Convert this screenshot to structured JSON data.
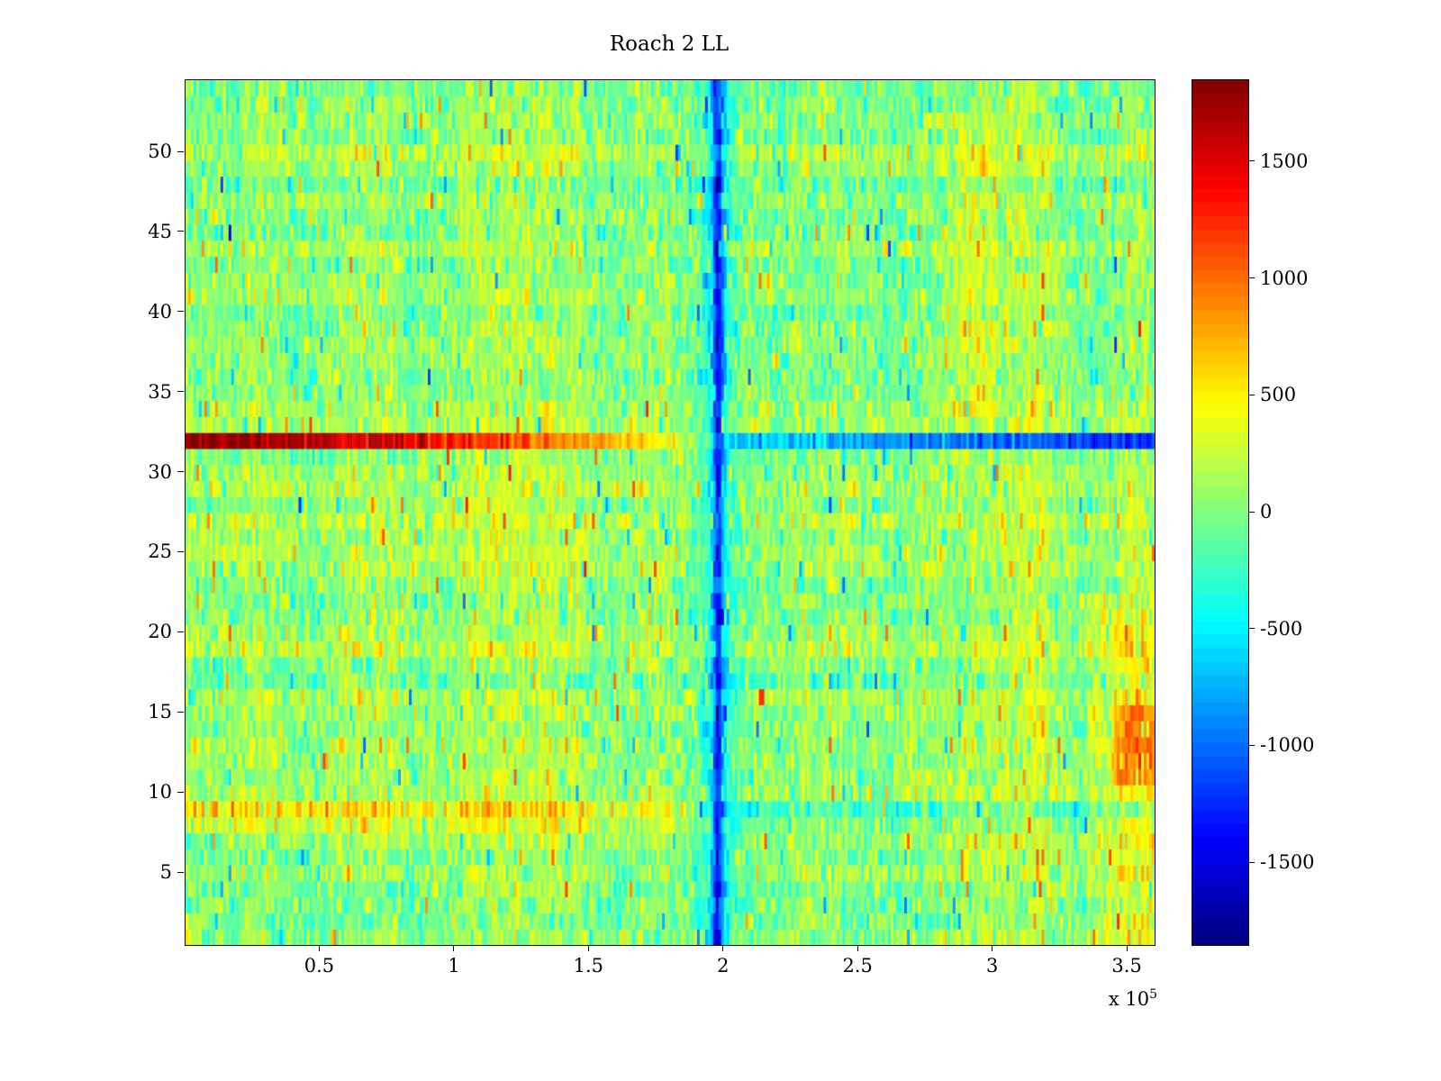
{
  "title": "Roach 2 LL",
  "x_axis": {
    "min": 0,
    "max": 360000,
    "tick_values": [
      50000,
      100000,
      150000,
      200000,
      250000,
      300000,
      350000
    ],
    "tick_labels": [
      "0.5",
      "1",
      "1.5",
      "2",
      "2.5",
      "3",
      "3.5"
    ],
    "scale_label_base": "x 10",
    "scale_label_exp": "5"
  },
  "y_axis": {
    "min": 0.5,
    "max": 54.5,
    "tick_values": [
      5,
      10,
      15,
      20,
      25,
      30,
      35,
      40,
      45,
      50
    ],
    "tick_labels": [
      "5",
      "10",
      "15",
      "20",
      "25",
      "30",
      "35",
      "40",
      "45",
      "50"
    ]
  },
  "colorbar": {
    "min": -1850,
    "max": 1850,
    "levels": 64,
    "colormap": "jet",
    "tick_values": [
      1500,
      1000,
      500,
      0,
      -500,
      -1000,
      -1500
    ],
    "tick_labels": [
      "1500",
      "1000",
      "500",
      "0",
      "-500",
      "-1000",
      "-1500"
    ]
  },
  "chart_data": {
    "type": "heatmap",
    "title": "Roach 2 LL",
    "xlabel": "",
    "ylabel": "",
    "x_range": [
      0,
      360000
    ],
    "y_range": [
      1,
      54
    ],
    "value_range": [
      -1850,
      1850
    ],
    "grid": {
      "cols": 360,
      "rows": 54
    },
    "noise": {
      "seed": 1337,
      "mean": 80,
      "std": 205,
      "row_offset_std": 70,
      "col_walk": 110,
      "spike_prob": 0.028,
      "spike_min": 350,
      "spike_max": 900
    },
    "features": [
      {
        "type": "row_set",
        "row": 32,
        "noise": 170,
        "stops": [
          [
            0,
            1800
          ],
          [
            0.12,
            1680
          ],
          [
            0.3,
            1280
          ],
          [
            0.42,
            820
          ],
          [
            0.5,
            480
          ],
          [
            0.545,
            80
          ],
          [
            0.57,
            -550
          ],
          [
            0.7,
            -820
          ],
          [
            0.85,
            -1000
          ],
          [
            1,
            -1250
          ]
        ]
      },
      {
        "type": "row_add",
        "row": 9,
        "stops": [
          [
            0,
            430
          ],
          [
            0.5,
            350
          ],
          [
            0.56,
            -300
          ],
          [
            1,
            -420
          ]
        ]
      },
      {
        "type": "row_add",
        "row": 8,
        "stops": [
          [
            0,
            180
          ],
          [
            0.5,
            140
          ],
          [
            0.56,
            -120
          ],
          [
            1,
            -160
          ]
        ]
      },
      {
        "type": "col_gauss",
        "center": 0.549,
        "sigma": 0.004,
        "amp": -950
      },
      {
        "type": "col_gauss",
        "center": 0.545,
        "sigma": 0.02,
        "amp": -320
      },
      {
        "type": "col_gauss",
        "center": 0.205,
        "sigma": 0.01,
        "amp": 110
      },
      {
        "type": "rect_add",
        "x0": 0.93,
        "x1": 1.0,
        "row0": 1,
        "row1": 22,
        "offset": 260
      },
      {
        "type": "rect_add",
        "x0": 0.955,
        "x1": 1.0,
        "row0": 11,
        "row1": 15,
        "offset": 430
      },
      {
        "type": "rect_add",
        "x0": 0.795,
        "x1": 0.835,
        "row0": 34,
        "row1": 52,
        "offset": 210
      },
      {
        "type": "rect_add",
        "x0": 0.6,
        "x1": 1.0,
        "row0": 1,
        "row1": 31,
        "offset": 55
      },
      {
        "type": "rect_add",
        "x0": 0.0,
        "x1": 0.55,
        "row0": 10,
        "row1": 31,
        "offset": 60
      }
    ]
  }
}
